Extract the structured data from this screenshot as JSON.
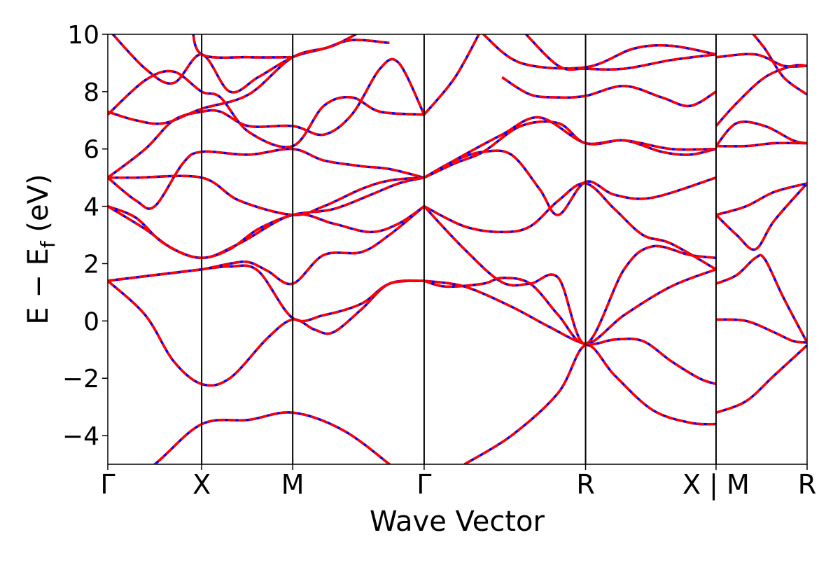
{
  "chart_data": {
    "type": "line",
    "xlabel": "Wave Vector",
    "ylabel_main": "E − E",
    "ylabel_sub": "f",
    "ylabel_unit": " (eV)",
    "ylim": [
      -5,
      10
    ],
    "yticks": [
      -4,
      -2,
      0,
      2,
      4,
      6,
      8,
      10
    ],
    "ytick_labels": [
      "−4",
      "−2",
      "0",
      "2",
      "4",
      "6",
      "8",
      "10"
    ],
    "xlim": [
      0,
      7.45
    ],
    "kpoints": [
      {
        "label": "Γ",
        "x": 0
      },
      {
        "label": "X",
        "x": 1.0
      },
      {
        "label": "M",
        "x": 1.97
      },
      {
        "label": "Γ",
        "x": 3.37
      },
      {
        "label": "R",
        "x": 5.09
      },
      {
        "label": "X | M",
        "x": 6.48
      },
      {
        "label": "R",
        "x": 7.45
      }
    ],
    "segment_breaks": [
      6.48
    ],
    "grid": false,
    "legend": "none",
    "series_styles": [
      {
        "color": "#0000ff",
        "linestyle": "solid"
      },
      {
        "color": "#ff0000",
        "linestyle": "dashed"
      }
    ],
    "bands": [
      [
        [
          0,
          -6.2
        ],
        [
          0.5,
          -5.0
        ],
        [
          1.0,
          -3.6
        ],
        [
          1.5,
          -3.45
        ],
        [
          1.97,
          -3.2
        ],
        [
          2.5,
          -3.8
        ],
        [
          3.0,
          -5.0
        ],
        [
          3.2,
          -5.6
        ]
      ],
      [
        [
          3.8,
          -5.0
        ],
        [
          4.3,
          -4.0
        ],
        [
          4.8,
          -2.5
        ],
        [
          5.09,
          -0.85
        ],
        [
          5.4,
          -1.9
        ],
        [
          5.8,
          -3.1
        ],
        [
          6.2,
          -3.55
        ],
        [
          6.48,
          -3.6
        ]
      ],
      [
        [
          6.48,
          -3.2
        ],
        [
          6.8,
          -2.8
        ],
        [
          7.1,
          -1.9
        ],
        [
          7.45,
          -0.85
        ]
      ],
      [
        [
          0,
          1.4
        ],
        [
          0.4,
          0.2
        ],
        [
          0.7,
          -1.4
        ],
        [
          1.0,
          -2.2
        ],
        [
          1.3,
          -2.0
        ],
        [
          1.7,
          -0.6
        ],
        [
          1.97,
          0.05
        ],
        [
          2.2,
          -0.3
        ],
        [
          2.4,
          -0.4
        ],
        [
          2.7,
          0.4
        ],
        [
          3.0,
          1.3
        ],
        [
          3.37,
          1.4
        ]
      ],
      [
        [
          3.37,
          1.4
        ],
        [
          3.8,
          1.2
        ],
        [
          4.3,
          0.5
        ],
        [
          4.7,
          -0.2
        ],
        [
          5.09,
          -0.8
        ],
        [
          5.4,
          -0.65
        ],
        [
          5.7,
          -0.7
        ],
        [
          6.0,
          -1.4
        ],
        [
          6.3,
          -2.0
        ],
        [
          6.48,
          -2.2
        ]
      ],
      [
        [
          6.48,
          0.05
        ],
        [
          6.8,
          0.0
        ],
        [
          7.1,
          -0.4
        ],
        [
          7.3,
          -0.7
        ],
        [
          7.45,
          -0.75
        ]
      ],
      [
        [
          0,
          1.4
        ],
        [
          0.5,
          1.6
        ],
        [
          1.0,
          1.8
        ],
        [
          1.3,
          1.9
        ],
        [
          1.6,
          1.75
        ],
        [
          1.97,
          0.1
        ],
        [
          2.3,
          0.2
        ],
        [
          2.7,
          0.6
        ],
        [
          3.0,
          1.3
        ],
        [
          3.37,
          1.4
        ]
      ],
      [
        [
          3.37,
          1.4
        ],
        [
          3.6,
          1.2
        ],
        [
          4.0,
          1.3
        ],
        [
          4.2,
          1.5
        ],
        [
          4.5,
          1.3
        ],
        [
          4.8,
          0.2
        ],
        [
          5.09,
          -0.8
        ],
        [
          5.5,
          0.2
        ],
        [
          6.0,
          1.2
        ],
        [
          6.48,
          1.8
        ]
      ],
      [
        [
          6.48,
          1.3
        ],
        [
          6.7,
          1.6
        ],
        [
          6.9,
          2.2
        ],
        [
          7.0,
          2.15
        ],
        [
          7.2,
          0.8
        ],
        [
          7.45,
          -0.75
        ]
      ],
      [
        [
          0,
          1.4
        ],
        [
          0.5,
          1.6
        ],
        [
          1.0,
          1.8
        ],
        [
          1.3,
          2.0
        ],
        [
          1.5,
          2.05
        ],
        [
          1.7,
          1.75
        ],
        [
          1.97,
          1.3
        ],
        [
          2.3,
          2.3
        ],
        [
          2.7,
          2.4
        ],
        [
          3.0,
          3.0
        ],
        [
          3.37,
          4.0
        ]
      ],
      [
        [
          3.37,
          4.0
        ],
        [
          3.8,
          2.5
        ],
        [
          4.2,
          1.35
        ],
        [
          4.5,
          1.3
        ],
        [
          4.8,
          1.5
        ],
        [
          5.09,
          -0.8
        ],
        [
          5.5,
          1.8
        ],
        [
          5.8,
          2.6
        ],
        [
          6.2,
          2.3
        ],
        [
          6.48,
          2.2
        ]
      ],
      [
        [
          0,
          4.0
        ],
        [
          0.3,
          3.6
        ],
        [
          0.6,
          2.7
        ],
        [
          1.0,
          2.2
        ],
        [
          1.4,
          2.7
        ],
        [
          1.97,
          3.7
        ],
        [
          2.4,
          3.4
        ],
        [
          2.8,
          3.1
        ],
        [
          3.1,
          3.4
        ],
        [
          3.37,
          4.0
        ]
      ],
      [
        [
          3.37,
          4.0
        ],
        [
          3.8,
          3.3
        ],
        [
          4.2,
          3.1
        ],
        [
          4.5,
          3.3
        ],
        [
          4.8,
          4.2
        ],
        [
          5.09,
          4.8
        ],
        [
          5.4,
          3.9
        ],
        [
          5.7,
          3.0
        ],
        [
          6.0,
          2.7
        ],
        [
          6.48,
          1.8
        ]
      ],
      [
        [
          6.48,
          3.7
        ],
        [
          6.8,
          4.0
        ],
        [
          7.1,
          4.5
        ],
        [
          7.45,
          4.8
        ]
      ],
      [
        [
          0,
          4.0
        ],
        [
          0.4,
          3.2
        ],
        [
          0.7,
          2.5
        ],
        [
          1.0,
          2.2
        ],
        [
          1.3,
          2.5
        ],
        [
          1.6,
          3.2
        ],
        [
          1.97,
          3.7
        ],
        [
          2.4,
          3.9
        ],
        [
          2.8,
          4.4
        ],
        [
          3.1,
          4.8
        ],
        [
          3.37,
          5.0
        ]
      ],
      [
        [
          3.37,
          5.0
        ],
        [
          3.7,
          5.6
        ],
        [
          4.0,
          5.9
        ],
        [
          4.3,
          5.8
        ],
        [
          4.6,
          4.6
        ],
        [
          4.8,
          3.7
        ],
        [
          5.09,
          4.85
        ],
        [
          5.4,
          4.4
        ],
        [
          5.8,
          4.3
        ],
        [
          6.48,
          5.0
        ]
      ],
      [
        [
          6.48,
          3.7
        ],
        [
          6.7,
          3.0
        ],
        [
          6.9,
          2.5
        ],
        [
          7.1,
          3.5
        ],
        [
          7.45,
          4.8
        ]
      ],
      [
        [
          0,
          5.0
        ],
        [
          0.3,
          5.0
        ],
        [
          1.0,
          5.0
        ],
        [
          1.4,
          4.2
        ],
        [
          1.97,
          3.7
        ],
        [
          2.3,
          4.0
        ],
        [
          2.7,
          4.6
        ],
        [
          3.0,
          4.9
        ],
        [
          3.37,
          5.0
        ]
      ],
      [
        [
          3.37,
          5.0
        ],
        [
          3.7,
          5.5
        ],
        [
          4.0,
          5.9
        ],
        [
          4.4,
          6.8
        ],
        [
          4.8,
          6.9
        ],
        [
          5.09,
          6.2
        ],
        [
          5.5,
          6.3
        ],
        [
          6.0,
          6.0
        ],
        [
          6.48,
          6.0
        ]
      ],
      [
        [
          6.48,
          6.1
        ],
        [
          6.8,
          6.1
        ],
        [
          7.1,
          6.2
        ],
        [
          7.45,
          6.2
        ]
      ],
      [
        [
          0,
          5.0
        ],
        [
          0.3,
          4.2
        ],
        [
          0.5,
          4.0
        ],
        [
          0.8,
          5.5
        ],
        [
          1.0,
          5.9
        ],
        [
          1.5,
          5.8
        ],
        [
          1.97,
          6.0
        ],
        [
          2.3,
          5.6
        ],
        [
          2.7,
          5.4
        ],
        [
          3.0,
          5.3
        ],
        [
          3.37,
          5.0
        ]
      ],
      [
        [
          3.37,
          5.0
        ],
        [
          3.8,
          5.8
        ],
        [
          4.2,
          6.5
        ],
        [
          4.6,
          7.1
        ],
        [
          5.09,
          6.2
        ],
        [
          5.5,
          6.3
        ],
        [
          5.9,
          5.9
        ],
        [
          6.2,
          5.8
        ],
        [
          6.48,
          6.0
        ]
      ],
      [
        [
          6.48,
          6.1
        ],
        [
          6.7,
          6.9
        ],
        [
          7.0,
          6.8
        ],
        [
          7.3,
          6.3
        ],
        [
          7.45,
          6.2
        ]
      ],
      [
        [
          0,
          5.0
        ],
        [
          0.4,
          6.0
        ],
        [
          0.7,
          7.0
        ],
        [
          1.0,
          7.3
        ],
        [
          1.2,
          7.3
        ],
        [
          1.5,
          6.8
        ],
        [
          1.97,
          6.8
        ],
        [
          2.3,
          6.5
        ],
        [
          2.6,
          7.2
        ],
        [
          2.9,
          8.8
        ],
        [
          3.1,
          9.0
        ],
        [
          3.37,
          7.2
        ]
      ],
      [
        [
          3.37,
          7.2
        ],
        [
          3.7,
          8.5
        ],
        [
          4.0,
          10.3
        ]
      ],
      [
        [
          0,
          7.2
        ],
        [
          0.4,
          8.4
        ],
        [
          0.7,
          8.7
        ],
        [
          1.0,
          8.0
        ],
        [
          1.2,
          7.8
        ],
        [
          1.5,
          6.6
        ],
        [
          1.97,
          6.1
        ],
        [
          2.3,
          7.5
        ],
        [
          2.6,
          7.8
        ],
        [
          2.9,
          7.3
        ],
        [
          3.37,
          7.2
        ]
      ],
      [
        [
          4.2,
          8.5
        ],
        [
          4.5,
          7.9
        ],
        [
          4.8,
          7.8
        ],
        [
          5.09,
          7.85
        ],
        [
          5.5,
          8.2
        ],
        [
          5.9,
          7.8
        ],
        [
          6.2,
          7.5
        ],
        [
          6.48,
          8.0
        ]
      ],
      [
        [
          6.48,
          6.8
        ],
        [
          6.7,
          7.6
        ],
        [
          7.0,
          8.5
        ],
        [
          7.3,
          8.9
        ],
        [
          7.45,
          8.9
        ]
      ],
      [
        [
          0,
          10.2
        ],
        [
          0.4,
          8.8
        ],
        [
          0.7,
          8.3
        ],
        [
          1.0,
          9.3
        ],
        [
          1.3,
          8.0
        ],
        [
          1.6,
          8.5
        ],
        [
          1.97,
          9.2
        ],
        [
          2.3,
          9.5
        ],
        [
          2.6,
          9.8
        ],
        [
          3.0,
          9.7
        ]
      ],
      [
        [
          4.0,
          10.0
        ],
        [
          4.4,
          9.0
        ],
        [
          5.09,
          8.85
        ],
        [
          5.6,
          9.5
        ],
        [
          6.0,
          9.6
        ],
        [
          6.48,
          9.3
        ]
      ],
      [
        [
          6.48,
          9.2
        ],
        [
          6.9,
          9.3
        ],
        [
          7.2,
          8.9
        ],
        [
          7.45,
          8.9
        ]
      ],
      [
        [
          0,
          7.3
        ],
        [
          0.3,
          7.0
        ],
        [
          0.6,
          6.9
        ],
        [
          1.0,
          7.4
        ],
        [
          1.5,
          7.9
        ],
        [
          1.97,
          9.2
        ],
        [
          2.4,
          9.6
        ],
        [
          2.8,
          10.3
        ]
      ],
      [
        [
          0.9,
          10.3
        ],
        [
          1.0,
          9.3
        ],
        [
          1.5,
          9.2
        ],
        [
          1.97,
          9.2
        ]
      ],
      [
        [
          4.4,
          10.2
        ],
        [
          4.8,
          8.9
        ],
        [
          5.09,
          8.8
        ],
        [
          5.5,
          8.8
        ],
        [
          6.0,
          9.1
        ],
        [
          6.48,
          9.3
        ]
      ],
      [
        [
          6.8,
          10.3
        ],
        [
          7.0,
          9.5
        ],
        [
          7.2,
          8.5
        ],
        [
          7.45,
          7.9
        ]
      ]
    ]
  }
}
